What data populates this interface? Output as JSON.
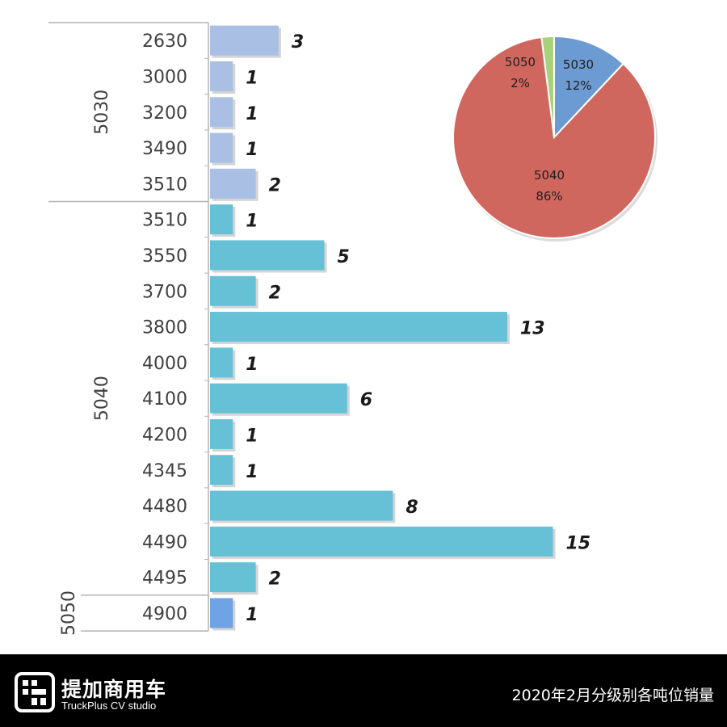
{
  "chart_data": [
    {
      "type": "bar",
      "orientation": "horizontal",
      "title": "",
      "xlabel": "",
      "ylabel": "",
      "xlim": [
        0,
        15
      ],
      "grid": false,
      "colors": {
        "5030": "#a9c0e4",
        "5040": "#66c0d6",
        "5050": "#6fa3e6"
      },
      "groups": [
        {
          "name": "5030",
          "categories": [
            "2630",
            "3000",
            "3200",
            "3490",
            "3510"
          ],
          "values": [
            3,
            1,
            1,
            1,
            2
          ]
        },
        {
          "name": "5040",
          "categories": [
            "3510",
            "3550",
            "3700",
            "3800",
            "4000",
            "4100",
            "4200",
            "4345",
            "4480",
            "4490",
            "4495"
          ],
          "values": [
            1,
            5,
            2,
            13,
            1,
            6,
            1,
            1,
            8,
            15,
            2
          ]
        },
        {
          "name": "5050",
          "categories": [
            "4900"
          ],
          "values": [
            1
          ]
        }
      ]
    },
    {
      "type": "pie",
      "title": "",
      "slices": [
        {
          "label": "5030",
          "value": 12,
          "display": "12%",
          "color": "#6c9ad2"
        },
        {
          "label": "5040",
          "value": 86,
          "display": "86%",
          "color": "#d0675f"
        },
        {
          "label": "5050",
          "value": 2,
          "display": "2%",
          "color": "#a9d07a"
        }
      ]
    }
  ],
  "footer": {
    "brand_cn": "提加商用车",
    "brand_en": "TruckPlus CV studio",
    "title": "2020年2月分级别各吨位销量"
  }
}
